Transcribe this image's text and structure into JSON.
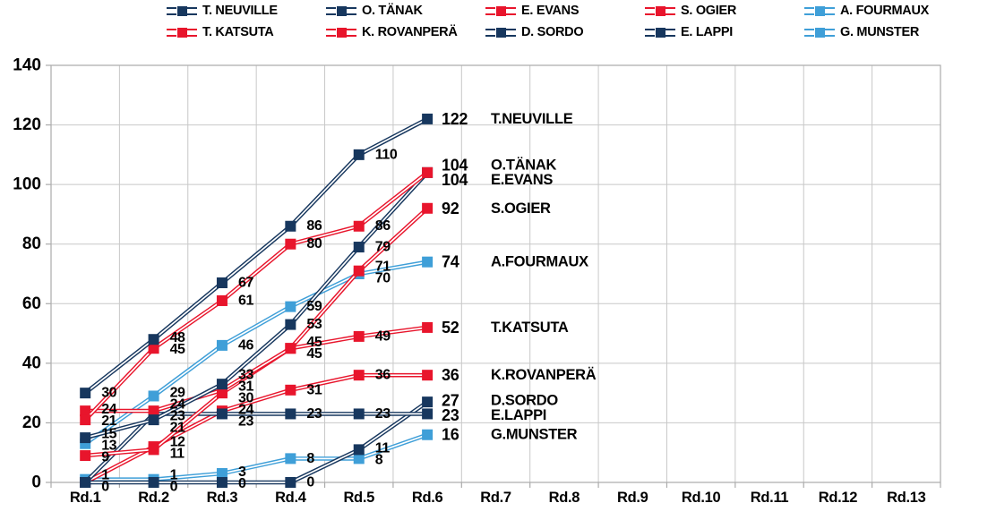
{
  "chart_data": {
    "type": "line",
    "title": "",
    "xlabel": "",
    "ylabel": "",
    "categories": [
      "Rd.1",
      "Rd.2",
      "Rd.3",
      "Rd.4",
      "Rd.5",
      "Rd.6",
      "Rd.7",
      "Rd.8",
      "Rd.9",
      "Rd.10",
      "Rd.11",
      "Rd.12",
      "Rd.13"
    ],
    "rounds_with_data": 6,
    "ylim": [
      0,
      140
    ],
    "ytick_step": 20,
    "grid": true,
    "legend_position": "top",
    "colors": {
      "navy": "#17375E",
      "red": "#E8152C",
      "lightblue": "#3F9FD8",
      "grid": "#C8C8C8",
      "border": "#ABABAB",
      "text": "#000000"
    },
    "series": [
      {
        "name": "T. NEUVILLE",
        "short": "T.NEUVILLE",
        "color": "navy",
        "values": [
          30,
          48,
          67,
          86,
          110,
          122
        ]
      },
      {
        "name": "O. TÄNAK",
        "short": "O.TÄNAK",
        "color": "navy",
        "values": [
          15,
          21,
          33,
          53,
          79,
          104
        ]
      },
      {
        "name": "E. EVANS",
        "short": "E.EVANS",
        "color": "red",
        "values": [
          21,
          45,
          61,
          80,
          86,
          104
        ]
      },
      {
        "name": "S. OGIER",
        "short": "S.OGIER",
        "color": "red",
        "values": [
          24,
          24,
          31,
          45,
          71,
          92
        ]
      },
      {
        "name": "A. FOURMAUX",
        "short": "A.FOURMAUX",
        "color": "lightblue",
        "values": [
          13,
          29,
          46,
          59,
          70,
          74
        ]
      },
      {
        "name": "T. KATSUTA",
        "short": "T.KATSUTA",
        "color": "red",
        "values": [
          9,
          11,
          30,
          45,
          49,
          52
        ]
      },
      {
        "name": "K. ROVANPERÄ",
        "short": "K.ROVANPERÄ",
        "color": "red",
        "values": [
          0,
          12,
          24,
          31,
          36,
          36
        ]
      },
      {
        "name": "D. SORDO",
        "short": "D.SORDO",
        "color": "navy",
        "values": [
          0,
          0,
          0,
          0,
          11,
          27
        ]
      },
      {
        "name": "E. LAPPI",
        "short": "E.LAPPI",
        "color": "navy",
        "values": [
          0,
          23,
          23,
          23,
          23,
          23
        ]
      },
      {
        "name": "G. MUNSTER",
        "short": "G.MUNSTER",
        "color": "lightblue",
        "values": [
          1,
          1,
          3,
          8,
          8,
          16
        ]
      }
    ]
  }
}
